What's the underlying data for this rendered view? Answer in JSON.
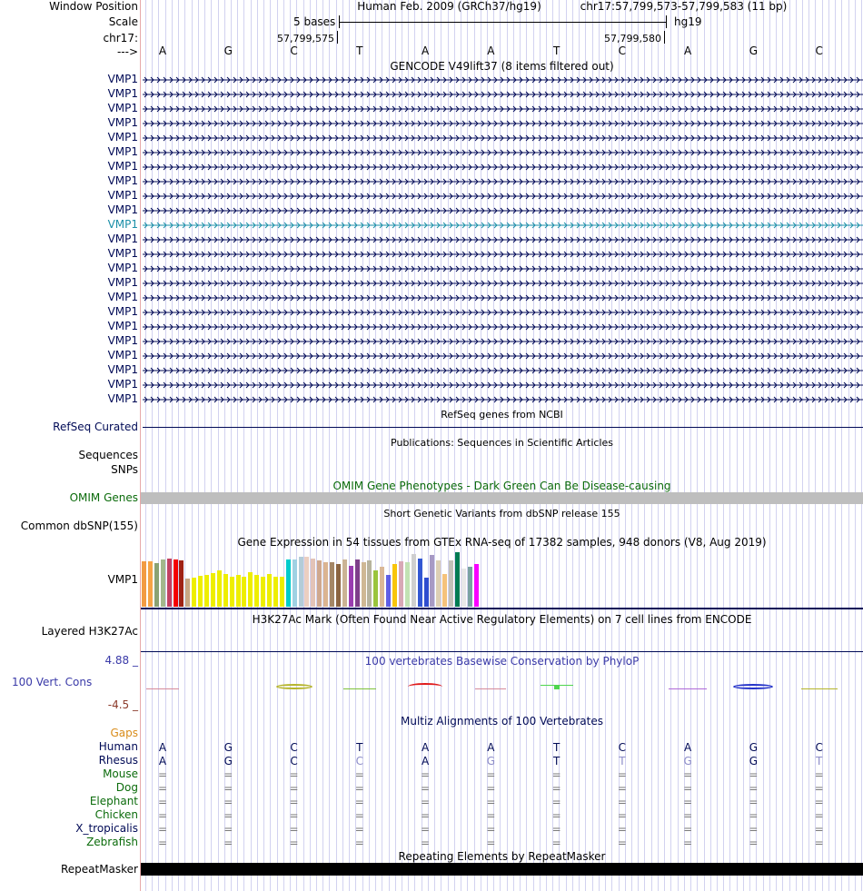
{
  "header": {
    "window_position_label": "Window Position",
    "assembly_text": "Human Feb. 2009 (GRCh37/hg19)",
    "position_text": "chr17:57,799,573-57,799,583 (11 bp)",
    "scale_label": "Scale",
    "scale_text": "5 bases",
    "db_label": "hg19",
    "chrom_label": "chr17:",
    "pos_start": "57,799,575",
    "pos_end": "57,799,580",
    "strand_label": "--->",
    "bases": [
      "A",
      "G",
      "C",
      "T",
      "A",
      "A",
      "T",
      "C",
      "A",
      "G",
      "C"
    ]
  },
  "gencode": {
    "title": "GENCODE V49lift37 (8 items filtered out)",
    "items": [
      "VMP1",
      "VMP1",
      "VMP1",
      "VMP1",
      "VMP1",
      "VMP1",
      "VMP1",
      "VMP1",
      "VMP1",
      "VMP1",
      "VMP1",
      "VMP1",
      "VMP1",
      "VMP1",
      "VMP1",
      "VMP1",
      "VMP1",
      "VMP1",
      "VMP1",
      "VMP1",
      "VMP1",
      "VMP1",
      "VMP1"
    ],
    "highlight_index": 10,
    "color": "#000a56",
    "highlight_color": "#1b8fa8"
  },
  "refseq": {
    "title": "RefSeq genes from NCBI",
    "label": "RefSeq Curated"
  },
  "publications": {
    "title": "Publications: Sequences in Scientific Articles",
    "sequences_label": "Sequences",
    "snps_label": "SNPs"
  },
  "omim": {
    "title": "OMIM Gene Phenotypes - Dark Green Can Be Disease-causing",
    "label": "OMIM Genes",
    "color": "#0b6b0b",
    "bar_color": "#bebebe"
  },
  "dbsnp": {
    "title": "Short Genetic Variants from dbSNP release 155",
    "label": "Common dbSNP(155)"
  },
  "gtex": {
    "title": "Gene Expression in 54 tissues from GTEx RNA-seq of 17382 samples, 948 donors (V8, Aug 2019)",
    "label": "VMP1",
    "levels": [
      0.78,
      0.78,
      0.75,
      0.81,
      0.83,
      0.81,
      0.79,
      0.48,
      0.5,
      0.53,
      0.55,
      0.58,
      0.62,
      0.56,
      0.52,
      0.55,
      0.51,
      0.59,
      0.54,
      0.51,
      0.56,
      0.52,
      0.51,
      0.81,
      0.81,
      0.86,
      0.86,
      0.83,
      0.8,
      0.76,
      0.77,
      0.74,
      0.81,
      0.71,
      0.81,
      0.77,
      0.8,
      0.63,
      0.68,
      0.55,
      0.73,
      0.78,
      0.76,
      0.91,
      0.83,
      0.5,
      0.89,
      0.8,
      0.56,
      0.79,
      0.94,
      0.66,
      0.68,
      0.74
    ],
    "colors": [
      "#f29b43",
      "#f5a345",
      "#8aa273",
      "#a3b88c",
      "#c24163",
      "#f40101",
      "#9f2214",
      "#c9a783",
      "#eeee00",
      "#eeee00",
      "#eeee00",
      "#eeee00",
      "#eeee00",
      "#eeee00",
      "#eeee00",
      "#eeee00",
      "#eeee00",
      "#eeee00",
      "#eeee00",
      "#eeee00",
      "#eeee00",
      "#eeee00",
      "#eeee00",
      "#00cccc",
      "#9fd1e3",
      "#b3ccd8",
      "#ebcfc1",
      "#e3c3b8",
      "#cfa88e",
      "#dbb491",
      "#a48666",
      "#8b6441",
      "#cbb394",
      "#993db0",
      "#7e3f8a",
      "#cfb894",
      "#b7b39d",
      "#9ac43c",
      "#dab897",
      "#5f5fe5",
      "#f8c50b",
      "#d8a8b6",
      "#c2e2b4",
      "#cfcfcf",
      "#3357d3",
      "#2f4dcf",
      "#a79ac4",
      "#dccfb5",
      "#f5c27c",
      "#c2c0b8",
      "#007b52",
      "#e8e8e8",
      "#7aa2a2",
      "#f900ff"
    ]
  },
  "h3k27ac": {
    "title": "H3K27Ac Mark (Often Found Near Active Regulatory Elements) on 7 cell lines from ENCODE",
    "label": "Layered H3K27Ac"
  },
  "conservation": {
    "title": "100 vertebrates Basewise Conservation by PhyloP",
    "label": "100 Vert. Cons",
    "max_label": "4.88 _",
    "min_label": "-4.5 _",
    "max_value": 4.88,
    "min_value": -4.5,
    "title_color": "#3a3aa8",
    "label_color": "#3a3aa8",
    "min_color": "#8b3a2a"
  },
  "multiz": {
    "title": "Multiz Alignments of 100 Vertebrates",
    "gaps_label": "Gaps",
    "gaps_color": "#d98c1a",
    "species": [
      {
        "name": "Human",
        "color": "#000a56",
        "bases": [
          "A",
          "G",
          "C",
          "T",
          "A",
          "A",
          "T",
          "C",
          "A",
          "G",
          "C"
        ]
      },
      {
        "name": "Rhesus",
        "color": "#000a56",
        "bases": [
          "A",
          "G",
          "C",
          "C",
          "A",
          "G",
          "T",
          "T",
          "G",
          "G",
          "T"
        ]
      },
      {
        "name": "Mouse",
        "color": "#0b6b0b",
        "bases": [
          "=",
          "=",
          "=",
          "=",
          "=",
          "=",
          "=",
          "=",
          "=",
          "=",
          "="
        ]
      },
      {
        "name": "Dog",
        "color": "#0b6b0b",
        "bases": [
          "=",
          "=",
          "=",
          "=",
          "=",
          "=",
          "=",
          "=",
          "=",
          "=",
          "="
        ]
      },
      {
        "name": "Elephant",
        "color": "#0b6b0b",
        "bases": [
          "=",
          "=",
          "=",
          "=",
          "=",
          "=",
          "=",
          "=",
          "=",
          "=",
          "="
        ]
      },
      {
        "name": "Chicken",
        "color": "#0b6b0b",
        "bases": [
          "=",
          "=",
          "=",
          "=",
          "=",
          "=",
          "=",
          "=",
          "=",
          "=",
          "="
        ]
      },
      {
        "name": "X_tropicalis",
        "color": "#000a56",
        "bases": [
          "=",
          "=",
          "=",
          "=",
          "=",
          "=",
          "=",
          "=",
          "=",
          "=",
          "="
        ]
      },
      {
        "name": "Zebrafish",
        "color": "#0b6b0b",
        "bases": [
          "=",
          "=",
          "=",
          "=",
          "=",
          "=",
          "=",
          "=",
          "=",
          "=",
          "="
        ]
      }
    ],
    "mismatch": [
      [
        false,
        false,
        false,
        false,
        false,
        false,
        false,
        false,
        false,
        false,
        false
      ],
      [
        false,
        false,
        false,
        true,
        false,
        true,
        false,
        true,
        true,
        false,
        true
      ]
    ]
  },
  "repeatmasker": {
    "title": "Repeating Elements by RepeatMasker",
    "label": "RepeatMasker"
  }
}
